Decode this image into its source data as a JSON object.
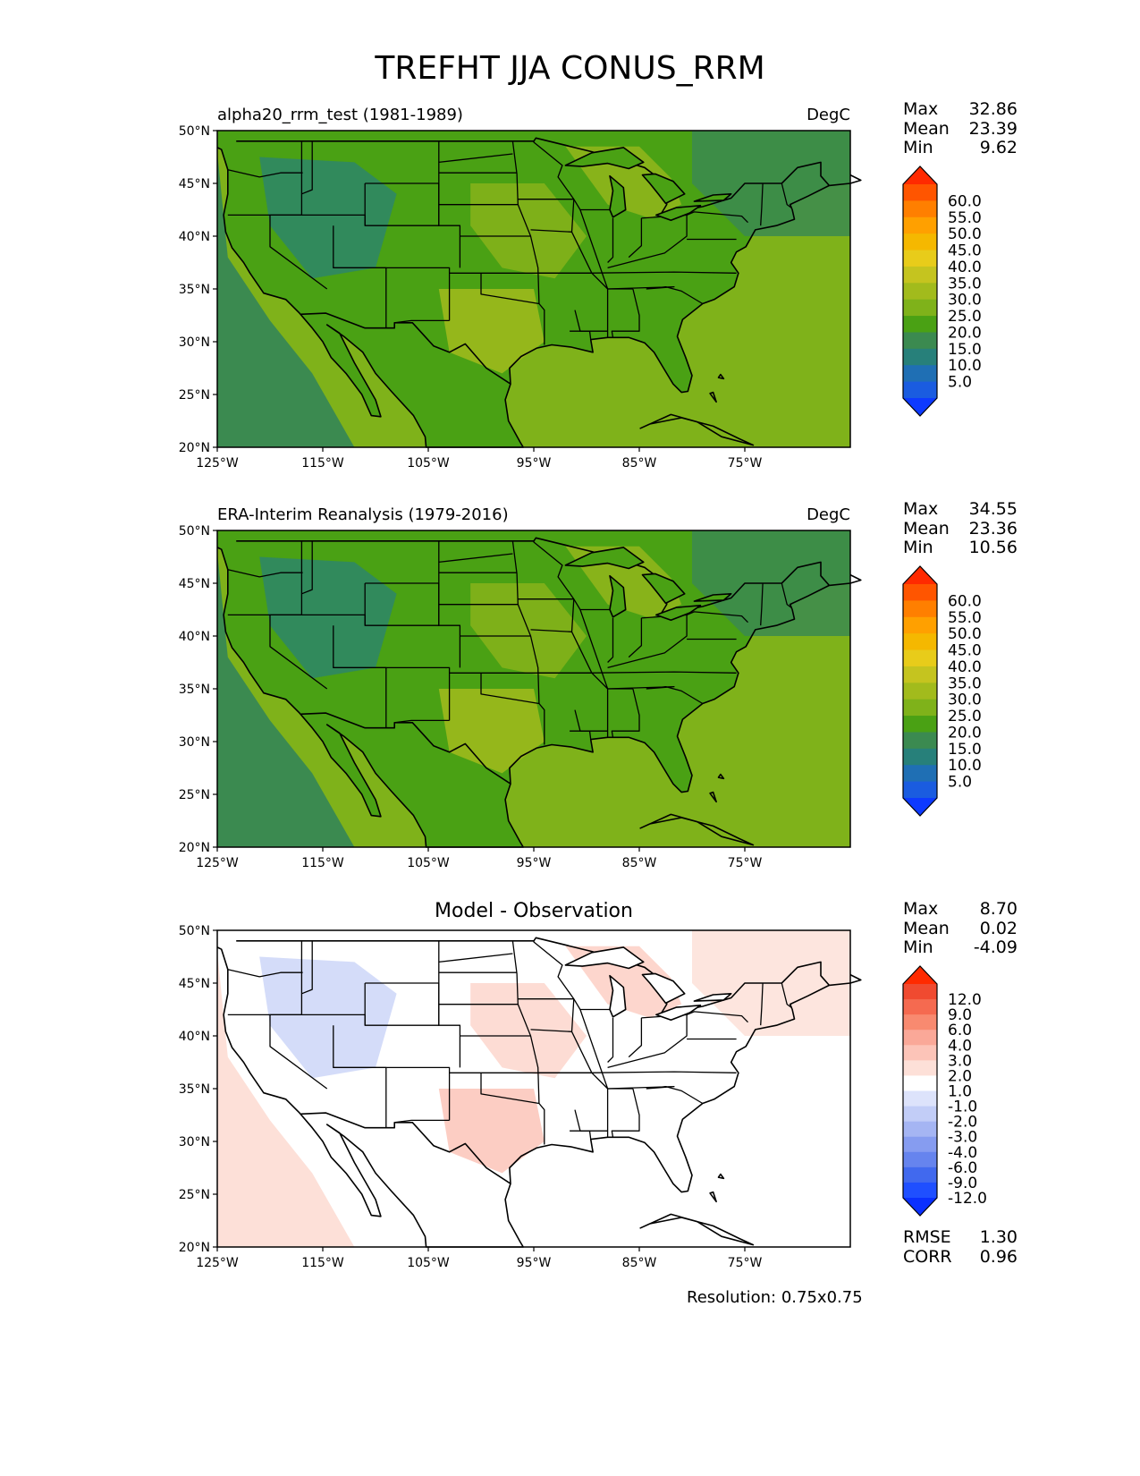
{
  "figure": {
    "suptitle": "TREFHT JJA CONUS_RRM",
    "footer": "Resolution: 0.75x0.75"
  },
  "axes": {
    "lat_labels": [
      "50°N",
      "45°N",
      "40°N",
      "35°N",
      "30°N",
      "25°N",
      "20°N"
    ],
    "lon_labels": [
      "125°W",
      "115°W",
      "105°W",
      "95°W",
      "85°W",
      "75°W"
    ]
  },
  "panels": [
    {
      "title": "alpha20_rrm_test (1981-1989)",
      "units": "DegC",
      "stats": [
        {
          "label": "Max",
          "value": "32.86"
        },
        {
          "label": "Mean",
          "value": "23.39"
        },
        {
          "label": "Min",
          "value": "9.62"
        }
      ],
      "colorbar": {
        "labels": [
          "60.0",
          "55.0",
          "50.0",
          "45.0",
          "40.0",
          "35.0",
          "30.0",
          "25.0",
          "20.0",
          "15.0",
          "10.0",
          "5.0"
        ],
        "colors": [
          "#ff2a00",
          "#ff5500",
          "#ff7f00",
          "#ffa000",
          "#f5b800",
          "#e8cc1a",
          "#c5c41f",
          "#a2bb1c",
          "#7fb21a",
          "#4aa114",
          "#3b8a50",
          "#27807a",
          "#1f6fb4",
          "#1a5ce0",
          "#0d3aff"
        ]
      },
      "fields": {
        "land": "#4aa114",
        "ocean": "#7fb21a",
        "coast": "#3b8a50",
        "cool": "#27807a",
        "warm": "#a2bb1c"
      }
    },
    {
      "title": "ERA-Interim Reanalysis (1979-2016)",
      "units": "DegC",
      "stats": [
        {
          "label": "Max",
          "value": "34.55"
        },
        {
          "label": "Mean",
          "value": "23.36"
        },
        {
          "label": "Min",
          "value": "10.56"
        }
      ],
      "colorbar": {
        "labels": [
          "60.0",
          "55.0",
          "50.0",
          "45.0",
          "40.0",
          "35.0",
          "30.0",
          "25.0",
          "20.0",
          "15.0",
          "10.0",
          "5.0"
        ],
        "colors": [
          "#ff2a00",
          "#ff5500",
          "#ff7f00",
          "#ffa000",
          "#f5b800",
          "#e8cc1a",
          "#c5c41f",
          "#a2bb1c",
          "#7fb21a",
          "#4aa114",
          "#3b8a50",
          "#27807a",
          "#1f6fb4",
          "#1a5ce0",
          "#0d3aff"
        ]
      },
      "fields": {
        "land": "#4aa114",
        "ocean": "#7fb21a",
        "coast": "#3b8a50",
        "cool": "#27807a",
        "warm": "#a2bb1c"
      }
    },
    {
      "title": "Model - Observation",
      "units": "",
      "stats": [
        {
          "label": "Max",
          "value": "8.70"
        },
        {
          "label": "Mean",
          "value": "0.02"
        },
        {
          "label": "Min",
          "value": "-4.09"
        }
      ],
      "extra_stats": [
        {
          "label": "RMSE",
          "value": "1.30"
        },
        {
          "label": "CORR",
          "value": "0.96"
        }
      ],
      "colorbar": {
        "labels": [
          "12.0",
          "9.0",
          "6.0",
          "4.0",
          "3.0",
          "2.0",
          "1.0",
          "-1.0",
          "-2.0",
          "-3.0",
          "-4.0",
          "-6.0",
          "-9.0",
          "-12.0"
        ],
        "colors": [
          "#ff2a00",
          "#f04a30",
          "#f56a50",
          "#f88a70",
          "#faa898",
          "#fcc4b8",
          "#fde0d8",
          "#ffffff",
          "#dde3fb",
          "#c2cdf7",
          "#a5b5f3",
          "#869cf0",
          "#6684ee",
          "#4169ee",
          "#1f4fff",
          "#0a30ff"
        ]
      },
      "fields": {
        "land": "#ffffff",
        "ocean": "#ffffff",
        "coast": "#fde0d8",
        "cool": "#c2cdf7",
        "warm": "#fcc4b8"
      }
    }
  ]
}
